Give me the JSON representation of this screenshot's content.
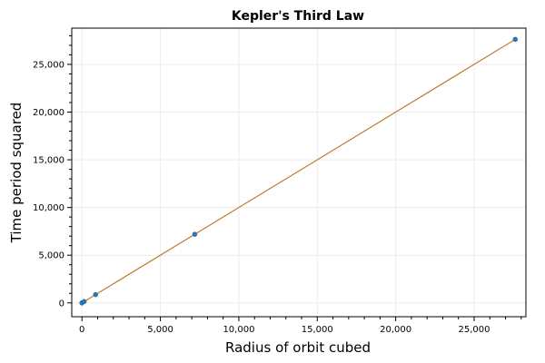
{
  "chart_data": {
    "type": "scatter",
    "title": "Kepler's Third Law",
    "xlabel": "Radius of orbit cubed",
    "ylabel": "Time period squared",
    "xlim": [
      -650,
      28300
    ],
    "ylim": [
      -1450,
      28800
    ],
    "x_ticks": [
      0,
      5000,
      10000,
      15000,
      20000,
      25000
    ],
    "x_tick_labels": [
      "0",
      "5,000",
      "10,000",
      "15,000",
      "20,000",
      "25,000"
    ],
    "y_ticks": [
      0,
      5000,
      10000,
      15000,
      20000,
      25000
    ],
    "y_tick_labels": [
      "0",
      "5,000",
      "10,000",
      "15,000",
      "20,000",
      "25,000"
    ],
    "grid": true,
    "legend": "none",
    "series": [
      {
        "kind": "points",
        "color": "#2e75b6",
        "x": [
          0.06,
          0.38,
          1.0,
          3.54,
          140,
          868,
          7190,
          27620
        ],
        "y": [
          0.06,
          0.38,
          1.0,
          3.54,
          140,
          868,
          7190,
          27620
        ]
      },
      {
        "kind": "fit-line",
        "color": "#c07a30",
        "x": [
          0,
          27620
        ],
        "y": [
          0,
          27620
        ]
      }
    ]
  }
}
